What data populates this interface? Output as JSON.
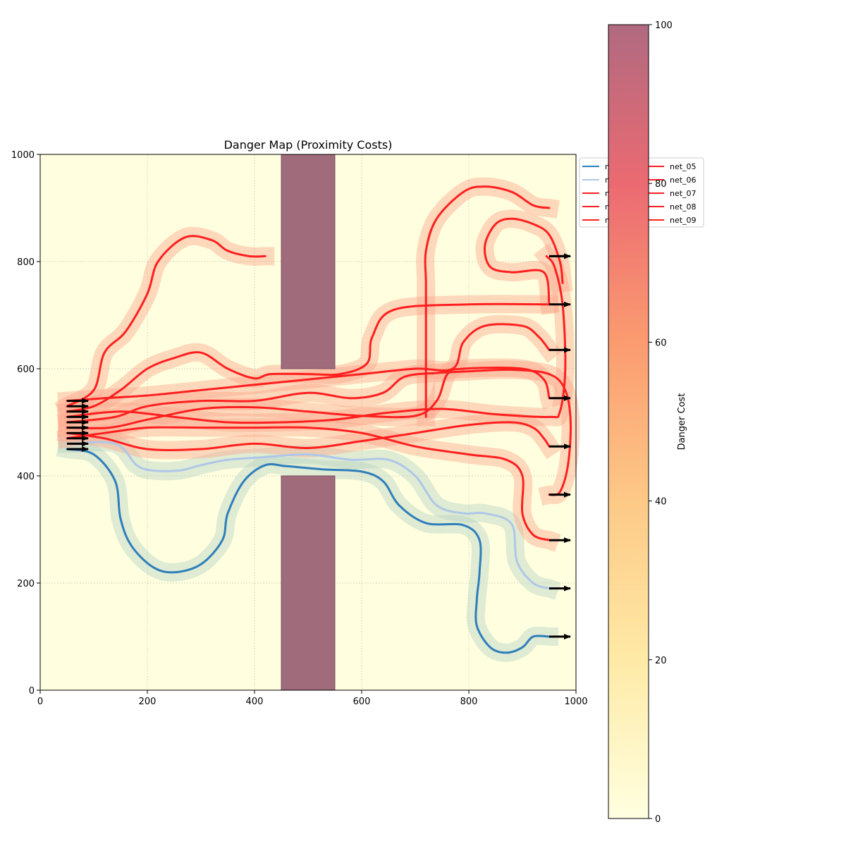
{
  "chart_data": {
    "type": "line",
    "title": "Danger Map (Proximity Costs)",
    "xlabel": "",
    "ylabel": "",
    "xlim": [
      0,
      1000
    ],
    "ylim": [
      0,
      1000
    ],
    "x_ticks": [
      0,
      200,
      400,
      600,
      800,
      1000
    ],
    "y_ticks": [
      0,
      200,
      400,
      600,
      800,
      1000
    ],
    "grid": true,
    "legend_placement": "upper-right, outside plot",
    "colorbar": {
      "label": "Danger Cost",
      "range": [
        0,
        100
      ],
      "ticks": [
        0,
        20,
        40,
        60,
        80,
        100
      ]
    },
    "obstacles": [
      {
        "x": [
          450,
          550
        ],
        "y": [
          600,
          1000
        ]
      },
      {
        "x": [
          450,
          550
        ],
        "y": [
          0,
          400
        ]
      }
    ],
    "legend_entries": [
      {
        "name": "net_00",
        "color": "#2e7ebc",
        "shown": "net_00"
      },
      {
        "name": "net_01",
        "color": "#aec7e8",
        "shown": "net_01"
      },
      {
        "name": "net_02",
        "color": "#ff1f1f",
        "shown": "net_02"
      },
      {
        "name": "net_03",
        "color": "#ff1f1f",
        "shown": "net_03"
      },
      {
        "name": "net_04",
        "color": "#ff1f1f",
        "shown": "net_04"
      },
      {
        "name": "net_05",
        "color": "#ff1f1f",
        "shown": "net_05"
      },
      {
        "name": "net_06",
        "color": "#ff1f1f",
        "shown": "net_06"
      },
      {
        "name": "net_07",
        "color": "#ff1f1f",
        "shown": "net_07"
      },
      {
        "name": "net_08",
        "color": "#ff1f1f",
        "shown": "net_08"
      },
      {
        "name": "net_09",
        "color": "#ff1f1f",
        "shown": "net_09"
      }
    ],
    "series": [
      {
        "name": "net_00",
        "color": "#2e7ebc",
        "points": [
          [
            50,
            450
          ],
          [
            100,
            440
          ],
          [
            140,
            390
          ],
          [
            150,
            320
          ],
          [
            170,
            270
          ],
          [
            210,
            230
          ],
          [
            250,
            220
          ],
          [
            300,
            235
          ],
          [
            340,
            280
          ],
          [
            350,
            330
          ],
          [
            380,
            390
          ],
          [
            420,
            420
          ],
          [
            460,
            418
          ],
          [
            530,
            412
          ],
          [
            600,
            408
          ],
          [
            640,
            390
          ],
          [
            670,
            345
          ],
          [
            720,
            312
          ],
          [
            790,
            308
          ],
          [
            820,
            280
          ],
          [
            820,
            220
          ],
          [
            815,
            170
          ],
          [
            815,
            120
          ],
          [
            840,
            80
          ],
          [
            870,
            70
          ],
          [
            900,
            80
          ],
          [
            920,
            100
          ],
          [
            950,
            100
          ]
        ]
      },
      {
        "name": "net_01",
        "color": "#aec7e8",
        "points": [
          [
            50,
            460
          ],
          [
            140,
            460
          ],
          [
            180,
            420
          ],
          [
            210,
            410
          ],
          [
            260,
            410
          ],
          [
            300,
            420
          ],
          [
            350,
            430
          ],
          [
            420,
            435
          ],
          [
            500,
            440
          ],
          [
            580,
            430
          ],
          [
            650,
            430
          ],
          [
            700,
            400
          ],
          [
            740,
            345
          ],
          [
            790,
            330
          ],
          [
            830,
            330
          ],
          [
            880,
            310
          ],
          [
            890,
            240
          ],
          [
            920,
            200
          ],
          [
            950,
            190
          ]
        ]
      },
      {
        "name": "net_02",
        "color": "#ff1f1f",
        "points": [
          [
            50,
            470
          ],
          [
            120,
            480
          ],
          [
            200,
            490
          ],
          [
            300,
            490
          ],
          [
            400,
            490
          ],
          [
            500,
            490
          ],
          [
            600,
            480
          ],
          [
            700,
            455
          ],
          [
            800,
            440
          ],
          [
            870,
            430
          ],
          [
            900,
            400
          ],
          [
            900,
            330
          ],
          [
            920,
            290
          ],
          [
            950,
            280
          ]
        ]
      },
      {
        "name": "net_03",
        "color": "#ff1f1f",
        "points": [
          [
            50,
            480
          ],
          [
            120,
            470
          ],
          [
            200,
            450
          ],
          [
            300,
            450
          ],
          [
            400,
            460
          ],
          [
            500,
            452
          ],
          [
            600,
            465
          ],
          [
            700,
            480
          ],
          [
            800,
            495
          ],
          [
            880,
            500
          ],
          [
            920,
            490
          ],
          [
            940,
            470
          ],
          [
            950,
            455
          ]
        ]
      },
      {
        "name": "net_04",
        "color": "#ff1f1f",
        "points": [
          [
            50,
            490
          ],
          [
            130,
            490
          ],
          [
            200,
            505
          ],
          [
            300,
            525
          ],
          [
            400,
            528
          ],
          [
            500,
            520
          ],
          [
            600,
            512
          ],
          [
            700,
            512
          ],
          [
            740,
            540
          ],
          [
            760,
            590
          ],
          [
            790,
            600
          ],
          [
            900,
            600
          ],
          [
            940,
            580
          ],
          [
            950,
            545
          ]
        ]
      },
      {
        "name": "net_05",
        "color": "#ff1f1f",
        "points": [
          [
            50,
            500
          ],
          [
            140,
            510
          ],
          [
            200,
            530
          ],
          [
            300,
            540
          ],
          [
            400,
            540
          ],
          [
            500,
            555
          ],
          [
            580,
            545
          ],
          [
            640,
            555
          ],
          [
            680,
            585
          ],
          [
            740,
            592
          ],
          [
            800,
            595
          ],
          [
            880,
            598
          ],
          [
            950,
            590
          ],
          [
            980,
            560
          ],
          [
            990,
            500
          ],
          [
            985,
            420
          ],
          [
            970,
            370
          ],
          [
            950,
            365
          ]
        ]
      },
      {
        "name": "net_06",
        "color": "#ff1f1f",
        "points": [
          [
            50,
            510
          ],
          [
            150,
            520
          ],
          [
            250,
            510
          ],
          [
            350,
            500
          ],
          [
            450,
            500
          ],
          [
            550,
            505
          ],
          [
            650,
            518
          ],
          [
            750,
            525
          ],
          [
            850,
            515
          ],
          [
            950,
            510
          ],
          [
            970,
            520
          ],
          [
            980,
            600
          ],
          [
            975,
            720
          ],
          [
            960,
            790
          ],
          [
            945,
            810
          ]
        ]
      },
      {
        "name": "net_07",
        "color": "#ff1f1f",
        "points": [
          [
            50,
            520
          ],
          [
            100,
            530
          ],
          [
            150,
            560
          ],
          [
            200,
            600
          ],
          [
            250,
            620
          ],
          [
            300,
            630
          ],
          [
            350,
            600
          ],
          [
            400,
            582
          ],
          [
            430,
            590
          ],
          [
            500,
            590
          ],
          [
            560,
            590
          ],
          [
            610,
            610
          ],
          [
            620,
            660
          ],
          [
            660,
            710
          ],
          [
            800,
            720
          ],
          [
            950,
            720
          ]
        ]
      },
      {
        "name": "net_08",
        "color": "#ff1f1f",
        "points": [
          [
            50,
            530
          ],
          [
            100,
            560
          ],
          [
            120,
            630
          ],
          [
            160,
            670
          ],
          [
            200,
            740
          ],
          [
            220,
            800
          ],
          [
            270,
            845
          ],
          [
            320,
            840
          ],
          [
            350,
            820
          ],
          [
            390,
            810
          ],
          [
            420,
            810
          ]
        ]
      },
      {
        "name": "net_09",
        "color": "#ff1f1f",
        "points": [
          [
            50,
            540
          ],
          [
            120,
            545
          ],
          [
            200,
            550
          ],
          [
            300,
            560
          ],
          [
            400,
            570
          ],
          [
            500,
            580
          ],
          [
            600,
            590
          ],
          [
            700,
            600
          ],
          [
            770,
            600
          ],
          [
            790,
            650
          ],
          [
            830,
            680
          ],
          [
            900,
            680
          ],
          [
            930,
            660
          ],
          [
            950,
            635
          ]
        ]
      }
    ],
    "extra_paths": [
      {
        "color": "#ff1f1f",
        "points": [
          [
            720,
            510
          ],
          [
            720,
            560
          ],
          [
            720,
            620
          ],
          [
            720,
            680
          ],
          [
            720,
            760
          ],
          [
            720,
            820
          ],
          [
            740,
            880
          ],
          [
            790,
            930
          ],
          [
            830,
            940
          ],
          [
            880,
            930
          ],
          [
            920,
            905
          ],
          [
            950,
            900
          ]
        ]
      },
      {
        "color": "#ff1f1f",
        "points": [
          [
            950,
            720
          ],
          [
            940,
            780
          ],
          [
            880,
            780
          ],
          [
            840,
            790
          ],
          [
            830,
            830
          ],
          [
            850,
            870
          ],
          [
            880,
            880
          ],
          [
            920,
            870
          ],
          [
            950,
            850
          ],
          [
            970,
            800
          ],
          [
            975,
            760
          ]
        ]
      }
    ]
  }
}
